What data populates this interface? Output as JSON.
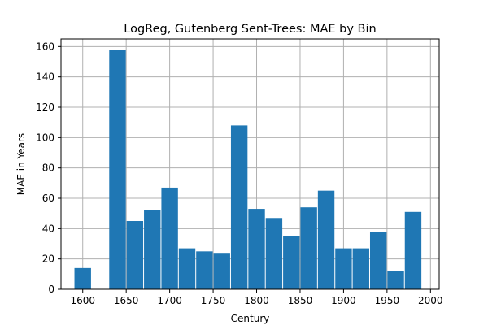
{
  "chart_data": {
    "type": "bar",
    "title": "LogReg, Gutenberg Sent-Trees: MAE by Bin",
    "xlabel": "Century",
    "ylabel": "MAE in Years",
    "xlim": [
      1575,
      2010
    ],
    "ylim": [
      0,
      165
    ],
    "xticks": [
      1600,
      1650,
      1700,
      1750,
      1800,
      1850,
      1900,
      1950,
      2000
    ],
    "yticks": [
      0,
      20,
      40,
      60,
      80,
      100,
      120,
      140,
      160
    ],
    "grid": true,
    "bar_color": "#1f77b4",
    "bin_width": 20,
    "bars": [
      {
        "x": 1600,
        "value": 14
      },
      {
        "x": 1640,
        "value": 158
      },
      {
        "x": 1660,
        "value": 45
      },
      {
        "x": 1680,
        "value": 52
      },
      {
        "x": 1700,
        "value": 67
      },
      {
        "x": 1720,
        "value": 27
      },
      {
        "x": 1740,
        "value": 25
      },
      {
        "x": 1760,
        "value": 24
      },
      {
        "x": 1780,
        "value": 108
      },
      {
        "x": 1800,
        "value": 53
      },
      {
        "x": 1820,
        "value": 47
      },
      {
        "x": 1840,
        "value": 35
      },
      {
        "x": 1860,
        "value": 54
      },
      {
        "x": 1880,
        "value": 65
      },
      {
        "x": 1900,
        "value": 27
      },
      {
        "x": 1920,
        "value": 27
      },
      {
        "x": 1940,
        "value": 38
      },
      {
        "x": 1960,
        "value": 12
      },
      {
        "x": 1980,
        "value": 51
      }
    ]
  }
}
